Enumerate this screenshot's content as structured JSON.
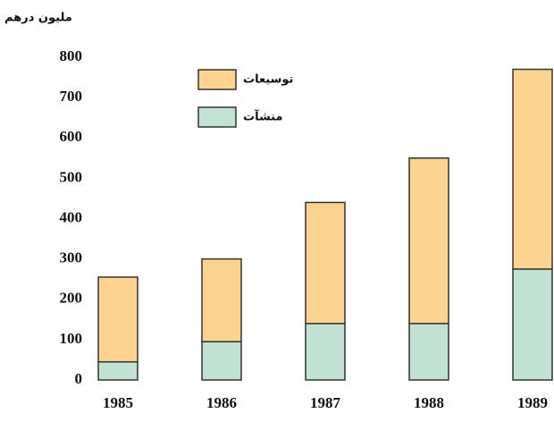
{
  "chart_data": {
    "type": "stacked_bar",
    "y_label": "مليون درهم",
    "categories": [
      "1985",
      "1986",
      "1987",
      "1988",
      "1989"
    ],
    "series": [
      {
        "name": "منشآت",
        "color": "#c2e2d4",
        "values": [
          45,
          95,
          140,
          140,
          275
        ]
      },
      {
        "name": "توسيعات",
        "color": "#fcd48f",
        "values": [
          210,
          205,
          300,
          410,
          495
        ]
      }
    ],
    "ylim": [
      0,
      800
    ],
    "yticks": [
      0,
      100,
      200,
      300,
      400,
      500,
      600,
      700,
      800
    ],
    "grid": false
  }
}
